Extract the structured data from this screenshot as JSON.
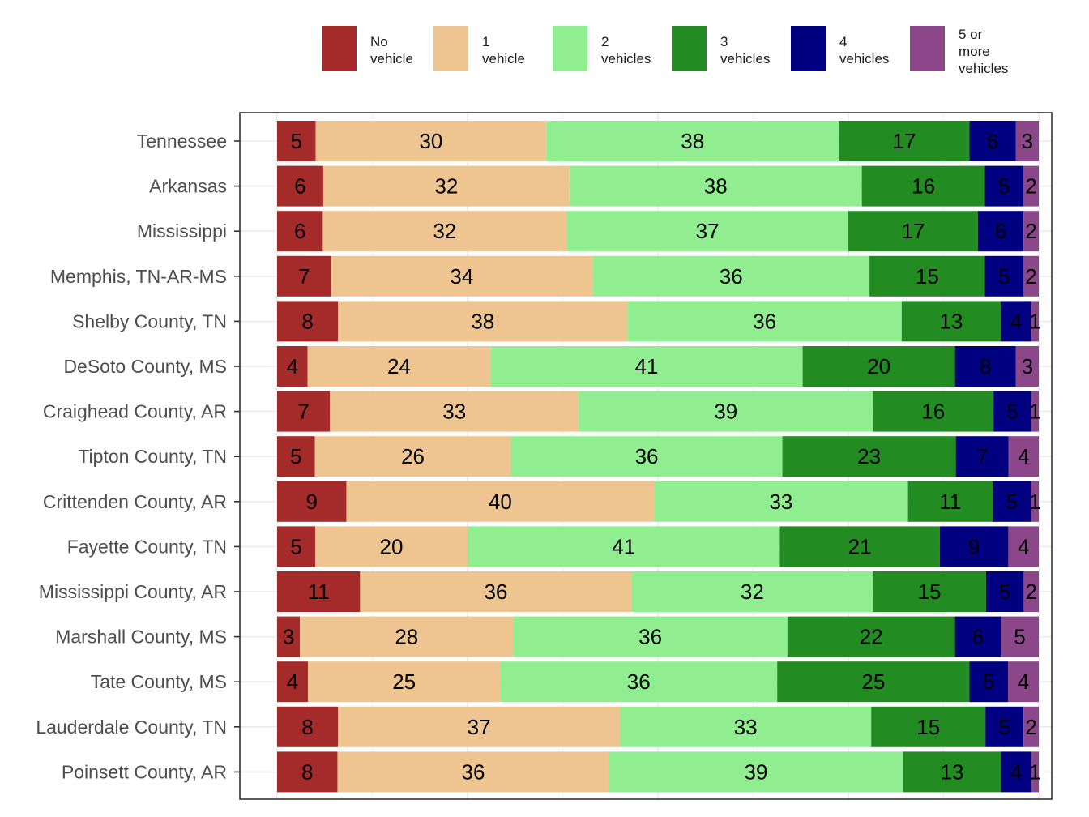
{
  "chart_data": {
    "type": "bar",
    "orientation": "horizontal",
    "stacked": true,
    "normalized": "percent",
    "grid": true,
    "legend_position": "top",
    "categories": [
      "Tennessee",
      "Arkansas",
      "Mississippi",
      "Memphis, TN-AR-MS",
      "Shelby County, TN",
      "DeSoto County, MS",
      "Craighead County, AR",
      "Tipton County, TN",
      "Crittenden County, AR",
      "Fayette County, TN",
      "Mississippi County, AR",
      "Marshall County, MS",
      "Tate County, MS",
      "Lauderdale County, TN",
      "Poinsett County, AR"
    ],
    "series": [
      {
        "name": "No vehicle",
        "color": "#A52A2A",
        "values": [
          5,
          6,
          6,
          7,
          8,
          4,
          7,
          5,
          9,
          5,
          11,
          3,
          4,
          8,
          8
        ]
      },
      {
        "name": "1 vehicle",
        "color": "#EEC591",
        "values": [
          30,
          32,
          32,
          34,
          38,
          24,
          33,
          26,
          40,
          20,
          36,
          28,
          25,
          37,
          36
        ]
      },
      {
        "name": "2 vehicles",
        "color": "#90EE90",
        "values": [
          38,
          38,
          37,
          36,
          36,
          41,
          39,
          36,
          33,
          41,
          32,
          36,
          36,
          33,
          39
        ]
      },
      {
        "name": "3 vehicles",
        "color": "#228B22",
        "values": [
          17,
          16,
          17,
          15,
          13,
          20,
          16,
          23,
          11,
          21,
          15,
          22,
          25,
          15,
          13
        ]
      },
      {
        "name": "4 vehicles",
        "color": "#000080",
        "values": [
          6,
          5,
          6,
          5,
          4,
          8,
          5,
          7,
          5,
          9,
          5,
          6,
          5,
          5,
          4
        ]
      },
      {
        "name": "5 or more vehicles",
        "color": "#8B4789",
        "values": [
          3,
          2,
          2,
          2,
          1,
          3,
          1,
          4,
          1,
          4,
          2,
          5,
          4,
          2,
          1
        ]
      }
    ],
    "legend_labels": [
      "No\nvehicle",
      "1\nvehicle",
      "2\nvehicles",
      "3\nvehicles",
      "4\nvehicles",
      "5 or\nmore\nvehicles"
    ]
  }
}
